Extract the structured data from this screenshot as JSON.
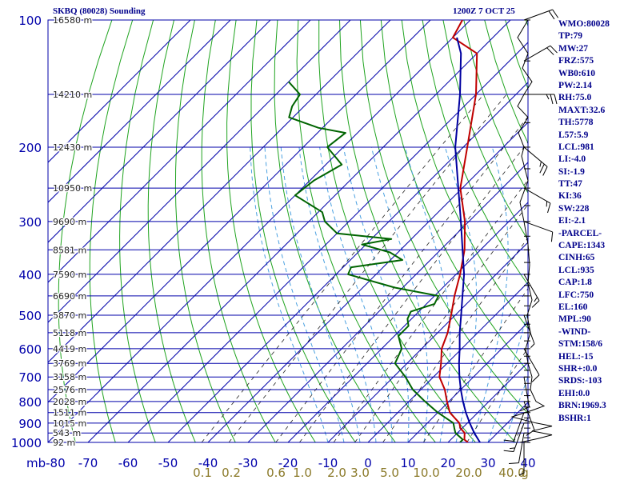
{
  "header": {
    "title_left": "SKBQ (80028) Sounding",
    "title_right": "1200Z  7 OCT 25"
  },
  "colors": {
    "grid": "#0000aa",
    "dry_adiabat": "#1fa31f",
    "temperature": "#c00000",
    "dewpoint": "#006400",
    "parcel": "#0000a0",
    "mixing_ratio": "#222222",
    "moist_adiabat": "#4aa0e0",
    "mixing_label": "#8b7a2a",
    "text": "#00008b",
    "wind": "#000000"
  },
  "chart_data": {
    "type": "skew-t",
    "pressure_unit": "mb",
    "pressure_levels": [
      100,
      200,
      300,
      400,
      500,
      600,
      700,
      800,
      900,
      1000
    ],
    "minor_pressure_lines": [
      150,
      250,
      350,
      450,
      550,
      650,
      750,
      850,
      950
    ],
    "temperature_ticks": [
      -80,
      -70,
      -60,
      -50,
      -40,
      -30,
      -20,
      -10,
      0,
      10,
      20,
      30,
      40
    ],
    "temperature_tick_labels": [
      "mb-80",
      "-70",
      "-60",
      "-50",
      "-40",
      "-30",
      "-20",
      "-10",
      "0",
      "10",
      "20",
      "30",
      "40"
    ],
    "mixing_ratio_labels": [
      "0.1",
      "0.2",
      "0.6",
      "1.0",
      "2.0",
      "3.0",
      "5.0",
      "10.0",
      "20.0",
      "40.0",
      "g"
    ],
    "height_labels": [
      {
        "text": "16580 m",
        "p": 100
      },
      {
        "text": "14210 m",
        "p": 150
      },
      {
        "text": "12430 m",
        "p": 200
      },
      {
        "text": "10950 m",
        "p": 250
      },
      {
        "text": "9690 m",
        "p": 300
      },
      {
        "text": "8581 m",
        "p": 350
      },
      {
        "text": "7590 m",
        "p": 400
      },
      {
        "text": "6690 m",
        "p": 450
      },
      {
        "text": "5870 m",
        "p": 500
      },
      {
        "text": "5118 m",
        "p": 550
      },
      {
        "text": "4419 m",
        "p": 600
      },
      {
        "text": "3769 m",
        "p": 650
      },
      {
        "text": "3158 m",
        "p": 700
      },
      {
        "text": "2576 m",
        "p": 750
      },
      {
        "text": "2028 m",
        "p": 800
      },
      {
        "text": "1511 m",
        "p": 850
      },
      {
        "text": "1015 m",
        "p": 900
      },
      {
        "text": "543 m",
        "p": 950
      },
      {
        "text": "92 m",
        "p": 1000
      }
    ],
    "series": [
      {
        "key": "temperature",
        "points": [
          [
            1000,
            25
          ],
          [
            985,
            23.4
          ],
          [
            950,
            21.8
          ],
          [
            925,
            19.5
          ],
          [
            900,
            18
          ],
          [
            850,
            13
          ],
          [
            800,
            9.5
          ],
          [
            750,
            6
          ],
          [
            700,
            1.5
          ],
          [
            650,
            -1.5
          ],
          [
            600,
            -5
          ],
          [
            550,
            -7.5
          ],
          [
            500,
            -11
          ],
          [
            450,
            -15
          ],
          [
            400,
            -19
          ],
          [
            350,
            -24
          ],
          [
            300,
            -31
          ],
          [
            250,
            -40.5
          ],
          [
            200,
            -49
          ],
          [
            150,
            -60
          ],
          [
            120,
            -70
          ],
          [
            110,
            -80
          ],
          [
            100,
            -82
          ]
        ]
      },
      {
        "key": "dewpoint",
        "points": [
          [
            1000,
            23
          ],
          [
            985,
            23
          ],
          [
            950,
            19.5
          ],
          [
            925,
            18
          ],
          [
            900,
            16.5
          ],
          [
            850,
            10
          ],
          [
            800,
            4
          ],
          [
            750,
            -2
          ],
          [
            700,
            -7
          ],
          [
            650,
            -13
          ],
          [
            600,
            -15
          ],
          [
            560,
            -19
          ],
          [
            530,
            -19
          ],
          [
            510,
            -21
          ],
          [
            490,
            -22
          ],
          [
            470,
            -18
          ],
          [
            450,
            -19
          ],
          [
            430,
            -32
          ],
          [
            400,
            -47
          ],
          [
            385,
            -48
          ],
          [
            370,
            -37
          ],
          [
            355,
            -42
          ],
          [
            340,
            -51
          ],
          [
            330,
            -45
          ],
          [
            320,
            -60
          ],
          [
            300,
            -66
          ],
          [
            285,
            -69
          ],
          [
            260,
            -80
          ],
          [
            240,
            -79
          ],
          [
            220,
            -76
          ],
          [
            200,
            -84
          ],
          [
            185,
            -83
          ],
          [
            180,
            -91
          ],
          [
            170,
            -101
          ],
          [
            160,
            -103
          ],
          [
            150,
            -104
          ],
          [
            140,
            -110
          ]
        ]
      },
      {
        "key": "parcel",
        "points": [
          [
            1000,
            28
          ],
          [
            950,
            24.2
          ],
          [
            900,
            20.6
          ],
          [
            850,
            17
          ],
          [
            800,
            13.5
          ],
          [
            750,
            10
          ],
          [
            700,
            6.5
          ],
          [
            650,
            3
          ],
          [
            600,
            -0.5
          ],
          [
            550,
            -4.5
          ],
          [
            500,
            -8.5
          ],
          [
            450,
            -13
          ],
          [
            400,
            -18
          ],
          [
            350,
            -24.5
          ],
          [
            300,
            -32
          ],
          [
            250,
            -41
          ],
          [
            200,
            -52
          ],
          [
            150,
            -64
          ],
          [
            120,
            -74
          ],
          [
            110,
            -79
          ]
        ]
      }
    ],
    "wind_barbs": [
      {
        "p": 1000,
        "dir": 180,
        "kt": 5
      },
      {
        "p": 950,
        "dir": 190,
        "kt": 10
      },
      {
        "p": 900,
        "dir": 200,
        "kt": 15
      },
      {
        "p": 850,
        "dir": 200,
        "kt": 10
      },
      {
        "p": 800,
        "dir": 160,
        "kt": 10
      },
      {
        "p": 700,
        "dir": 170,
        "kt": 10
      },
      {
        "p": 600,
        "dir": 150,
        "kt": 10
      },
      {
        "p": 500,
        "dir": 160,
        "kt": 5
      },
      {
        "p": 400,
        "dir": 150,
        "kt": 15
      },
      {
        "p": 300,
        "dir": 110,
        "kt": 10
      },
      {
        "p": 250,
        "dir": 120,
        "kt": 15
      },
      {
        "p": 200,
        "dir": 130,
        "kt": 25
      },
      {
        "p": 150,
        "dir": 90,
        "kt": 25
      },
      {
        "p": 125,
        "dir": 60,
        "kt": 20
      },
      {
        "p": 100,
        "dir": 70,
        "kt": 20
      }
    ],
    "hodo_wiggle": [
      [
        1000,
        650
      ],
      [
        980,
        672
      ],
      [
        960,
        690
      ],
      [
        940,
        665
      ],
      [
        915,
        690
      ],
      [
        900,
        670
      ],
      [
        870,
        640
      ],
      [
        840,
        665
      ],
      [
        820,
        680
      ],
      [
        800,
        670
      ],
      [
        750,
        663
      ],
      [
        700,
        665
      ],
      [
        650,
        660
      ],
      [
        600,
        657
      ],
      [
        550,
        663
      ],
      [
        500,
        659
      ],
      [
        460,
        665
      ],
      [
        420,
        660
      ],
      [
        380,
        662
      ],
      [
        340,
        660
      ],
      [
        300,
        655
      ],
      [
        270,
        650
      ],
      [
        240,
        660
      ],
      [
        210,
        652
      ],
      [
        200,
        655
      ],
      [
        185,
        648
      ],
      [
        170,
        660
      ],
      [
        160,
        647
      ],
      [
        150,
        655
      ],
      [
        140,
        665
      ],
      [
        130,
        653
      ],
      [
        120,
        660
      ],
      [
        110,
        647
      ],
      [
        100,
        660
      ]
    ]
  },
  "indices": [
    "WMO:80028",
    "TP:79",
    "MW:27",
    "FRZ:575",
    "WB0:610",
    "PW:2.14",
    "RH:75.0",
    "MAXT:32.6",
    "TH:5778",
    "L57:5.9",
    "LCL:981",
    "LI:-4.0",
    "SI:-1.9",
    "TT:47",
    "KI:36",
    "SW:228",
    "EI:-2.1",
    "-PARCEL-",
    "CAPE:1343",
    "CINH:65",
    "LCL:935",
    "CAP:1.8",
    "LFC:750",
    "EL:160",
    "MPL:90",
    "-WIND-",
    "STM:158/6",
    "HEL:-15",
    "SHR+:0.0",
    "SRDS:-103",
    "EHI:0.0",
    "BRN:1969.3",
    "BSHR:1"
  ]
}
